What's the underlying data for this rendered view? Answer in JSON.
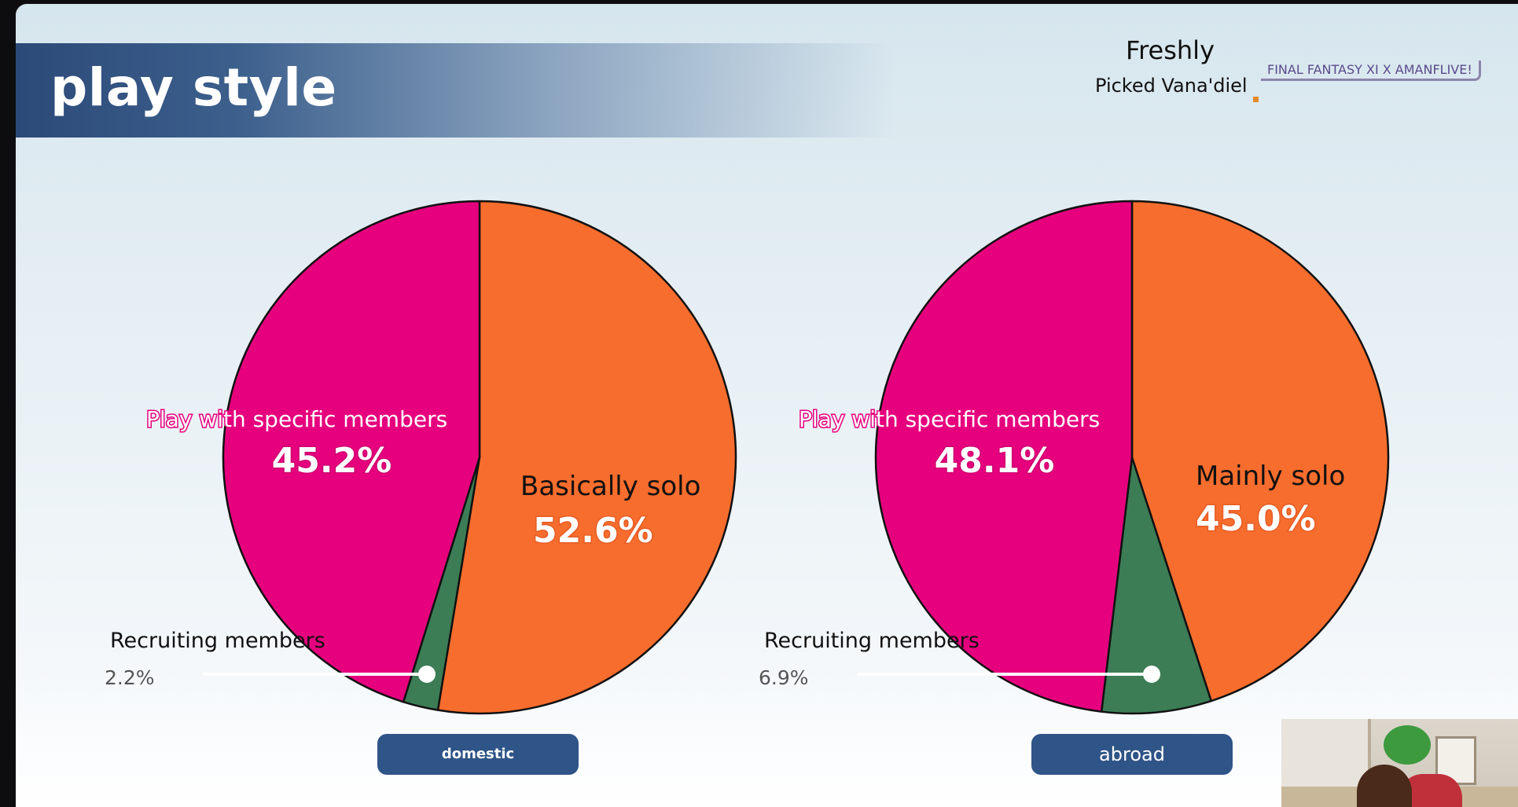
{
  "title": "play style",
  "branding": {
    "line1": "Freshly",
    "line2": "Picked Vana'diel",
    "logo_text": "FINAL FANTASY XI X AMANFLIVE!"
  },
  "colors": {
    "solo": "#f76d2d",
    "specific": "#e6007e",
    "recruiting": "#3c7d56",
    "button": "#2f5487"
  },
  "chart_data": [
    {
      "type": "pie",
      "name": "domestic",
      "slices": [
        {
          "label": "Basically solo",
          "value": 52.6,
          "value_text": "52.6%",
          "color": "#f76d2d"
        },
        {
          "label": "Recruiting members",
          "value": 2.2,
          "value_text": "2.2%",
          "color": "#3c7d56"
        },
        {
          "label": "Play with specific members",
          "value": 45.2,
          "value_text": "45.2%",
          "color": "#e6007e"
        }
      ]
    },
    {
      "type": "pie",
      "name": "abroad",
      "slices": [
        {
          "label": "Mainly solo",
          "value": 45.0,
          "value_text": "45.0%",
          "color": "#f76d2d"
        },
        {
          "label": "Recruiting members",
          "value": 6.9,
          "value_text": "6.9%",
          "color": "#3c7d56"
        },
        {
          "label": "Play with specific members",
          "value": 48.1,
          "value_text": "48.1%",
          "color": "#e6007e"
        }
      ]
    }
  ],
  "buttons": {
    "domestic": "domestic",
    "abroad": "abroad"
  }
}
